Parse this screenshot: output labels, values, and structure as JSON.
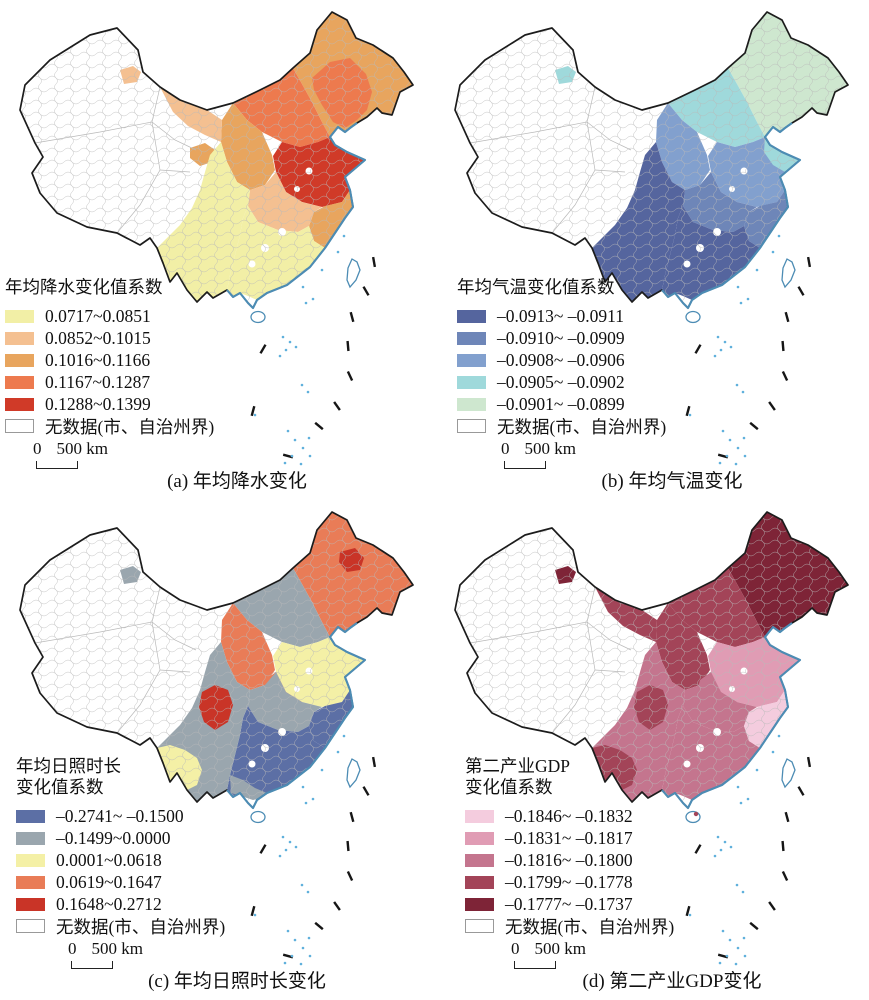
{
  "figure": {
    "type": "choropleth-map-grid",
    "region": "China",
    "panel_count": 4
  },
  "map_style": {
    "border_color": "#1c1c1c",
    "boundary_color": "#b9b9b9",
    "coast_color": "#4C8CB4",
    "island_dot_color": "#5FB0DC",
    "sea_dash_color": "#161616",
    "no_data_fill": "#ffffff"
  },
  "panels": [
    {
      "id": "a",
      "legend_title": "年均降水变化值系数",
      "classes": [
        {
          "range": "0.0717~0.0851",
          "color": "#F2EFA6"
        },
        {
          "range": "0.0852~0.1015",
          "color": "#F4C091"
        },
        {
          "range": "0.1016~0.1166",
          "color": "#E8A55E"
        },
        {
          "range": "0.1167~0.1287",
          "color": "#ED7A4E"
        },
        {
          "range": "0.1288~0.1399",
          "color": "#D03A28"
        }
      ],
      "no_data_label": "无数据(市、自治州界)",
      "scale": {
        "zero": "0",
        "distance": "500 km"
      },
      "caption": "(a) 年均降水变化",
      "regions": [
        {
          "zone": "northeast",
          "class": 2
        },
        {
          "zone": "northeastInner",
          "class": 3
        },
        {
          "zone": "imBand",
          "class": 3
        },
        {
          "zone": "loess",
          "class": 2
        },
        {
          "zone": "gansu",
          "class": 1
        },
        {
          "zone": "qinghaiEast",
          "class": 2
        },
        {
          "zone": "plain",
          "class": 4
        },
        {
          "zone": "eastCoast",
          "class": 2
        },
        {
          "zone": "yangtze",
          "class": 1
        },
        {
          "zone": "south",
          "class": 0
        },
        {
          "zone": "southwest",
          "class": 0
        },
        {
          "zone": "altaiPatch",
          "class": 1
        }
      ]
    },
    {
      "id": "b",
      "legend_title": "年均气温变化值系数",
      "classes": [
        {
          "range": "–0.0913~ –0.0911",
          "color": "#55659E"
        },
        {
          "range": "–0.0910~ –0.0909",
          "color": "#6E86B8"
        },
        {
          "range": "–0.0908~ –0.0906",
          "color": "#82A0CE"
        },
        {
          "range": "–0.0905~ –0.0902",
          "color": "#9FD9DB"
        },
        {
          "range": "–0.0901~ –0.0899",
          "color": "#CEE7CF"
        }
      ],
      "no_data_label": "无数据(市、自治州界)",
      "scale": {
        "zero": "0",
        "distance": "500 km"
      },
      "caption": "(b) 年均气温变化",
      "regions": [
        {
          "zone": "northeast",
          "class": 4
        },
        {
          "zone": "imBand",
          "class": 3
        },
        {
          "zone": "loess",
          "class": 2
        },
        {
          "zone": "plain",
          "class": 2
        },
        {
          "zone": "shandong",
          "class": 3
        },
        {
          "zone": "eastCoast",
          "class": 1
        },
        {
          "zone": "yangtze",
          "class": 1
        },
        {
          "zone": "south",
          "class": 0
        },
        {
          "zone": "southwest",
          "class": 0
        },
        {
          "zone": "altaiPatch",
          "class": 3
        }
      ]
    },
    {
      "id": "c",
      "legend_title": "年均日照时长\n变化值系数",
      "classes": [
        {
          "range": "–0.2741~ –0.1500",
          "color": "#5C6FA5"
        },
        {
          "range": "–0.1499~0.0000",
          "color": "#9AA6AE"
        },
        {
          "range": "0.0001~0.0618",
          "color": "#F4F0A6"
        },
        {
          "range": "0.0619~0.1647",
          "color": "#E97C57"
        },
        {
          "range": "0.1648~0.2712",
          "color": "#C93427"
        }
      ],
      "no_data_label": "无数据(市、自治州界)",
      "scale": {
        "zero": "0",
        "distance": "500 km"
      },
      "caption": "(c) 年均日照时长变化",
      "regions": [
        {
          "zone": "northeast",
          "class": 3
        },
        {
          "zone": "neRedPatch",
          "class": 4
        },
        {
          "zone": "imBand",
          "class": 1
        },
        {
          "zone": "loess",
          "class": 3
        },
        {
          "zone": "plain",
          "class": 2
        },
        {
          "zone": "henan",
          "class": 3
        },
        {
          "zone": "yangtze",
          "class": 1
        },
        {
          "zone": "south",
          "class": 0
        },
        {
          "zone": "southCoast",
          "class": 1
        },
        {
          "zone": "southwest",
          "class": 1
        },
        {
          "zone": "yunnan",
          "class": 2
        },
        {
          "zone": "sichuanRed",
          "class": 4
        },
        {
          "zone": "eastCoast",
          "class": 0
        },
        {
          "zone": "altaiPatch",
          "class": 1
        }
      ]
    },
    {
      "id": "d",
      "legend_title": "第二产业GDP\n变化值系数",
      "classes": [
        {
          "range": "–0.1846~ –0.1832",
          "color": "#F4CCDE"
        },
        {
          "range": "–0.1831~ –0.1817",
          "color": "#E09CB4"
        },
        {
          "range": "–0.1816~ –0.1800",
          "color": "#C4758E"
        },
        {
          "range": "–0.1799~ –0.1778",
          "color": "#A34458"
        },
        {
          "range": "–0.1777~ –0.1737",
          "color": "#7E2437"
        }
      ],
      "no_data_label": "无数据(市、自治州界)",
      "scale": {
        "zero": "0",
        "distance": "500 km"
      },
      "caption": "(d) 第二产业GDP变化",
      "regions": [
        {
          "zone": "northeast",
          "class": 4
        },
        {
          "zone": "imBand",
          "class": 3
        },
        {
          "zone": "loess",
          "class": 3
        },
        {
          "zone": "gansu",
          "class": 3
        },
        {
          "zone": "plain",
          "class": 1
        },
        {
          "zone": "henan",
          "class": 2
        },
        {
          "zone": "yangtze",
          "class": 2
        },
        {
          "zone": "south",
          "class": 2
        },
        {
          "zone": "southwest",
          "class": 2
        },
        {
          "zone": "yunnan",
          "class": 3
        },
        {
          "zone": "sichuanRed",
          "class": 3
        },
        {
          "zone": "eastCoast",
          "class": 0
        },
        {
          "zone": "altaiPatch",
          "class": 4
        }
      ]
    }
  ]
}
